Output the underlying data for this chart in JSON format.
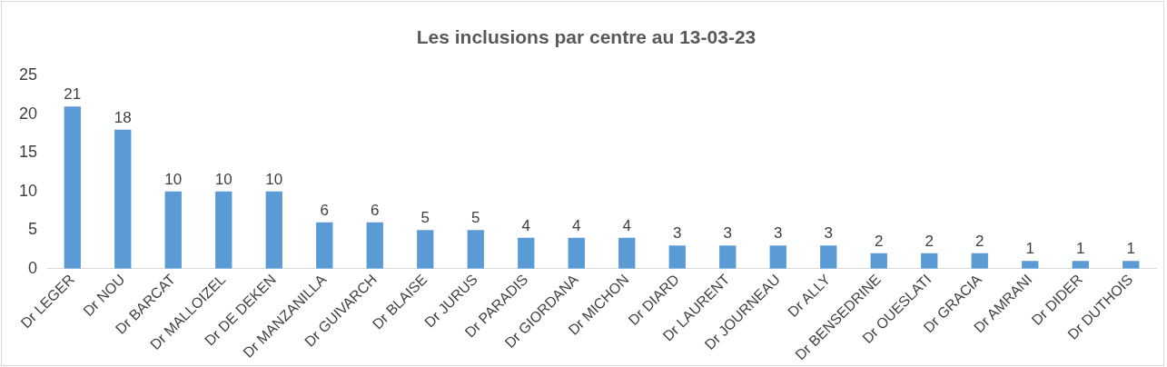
{
  "chart_data": {
    "type": "bar",
    "title": "Les inclusions par centre au 13-03-23",
    "categories": [
      "Dr LEGER",
      "Dr NOU",
      "Dr BARCAT",
      "Dr MALLOIZEL",
      "Dr DE DEKEN",
      "Dr MANZANILLA",
      "Dr GUIVARCH",
      "Dr BLAISE",
      "Dr JURUS",
      "Dr PARADIS",
      "Dr GIORDANA",
      "Dr MICHON",
      "Dr DIARD",
      "Dr LAURENT",
      "Dr JOURNEAU",
      "Dr ALLY",
      "Dr BENSEDRINE",
      "Dr OUESLATI",
      "Dr GRACIA",
      "Dr AMRANI",
      "Dr DIDER",
      "Dr DUTHOIS"
    ],
    "values": [
      21,
      18,
      10,
      10,
      10,
      6,
      6,
      5,
      5,
      4,
      4,
      4,
      3,
      3,
      3,
      3,
      2,
      2,
      2,
      1,
      1,
      1
    ],
    "color": "#5b9bd5",
    "ylim": [
      0,
      25
    ],
    "yticks": [
      0,
      5,
      10,
      15,
      20,
      25
    ],
    "grid": false,
    "data_labels": true
  }
}
